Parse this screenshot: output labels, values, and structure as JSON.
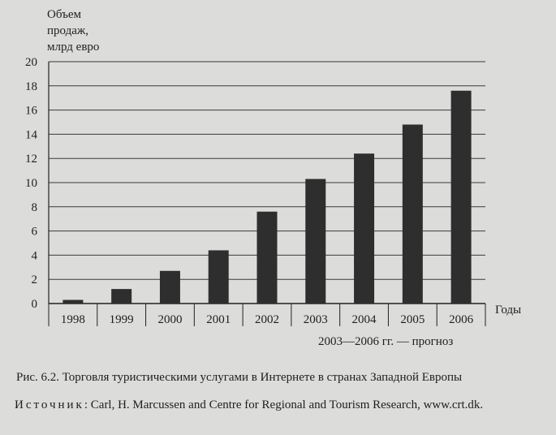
{
  "chart_data": {
    "type": "bar",
    "ylabel_lines": [
      "Объем",
      "продаж,",
      "млрд евро"
    ],
    "xlabel": "Годы",
    "categories": [
      "1998",
      "1999",
      "2000",
      "2001",
      "2002",
      "2003",
      "2004",
      "2005",
      "2006"
    ],
    "values": [
      0.3,
      1.2,
      2.7,
      4.4,
      7.6,
      10.3,
      12.4,
      14.8,
      17.6
    ],
    "ylim": [
      0,
      20
    ],
    "yticks": [
      0,
      2,
      4,
      6,
      8,
      10,
      12,
      14,
      16,
      18,
      20
    ],
    "grid": true,
    "bar_color": "#2e2e2e",
    "note": "2003—2006 гг. — прогноз"
  },
  "caption": "Рис. 6.2. Торговля туристическими услугами в Интернете в странах Западной Европы",
  "source": {
    "lead": "Источник",
    "text": ": Carl, H. Marcussen and Centre for Regional and Tourism Research, www.crt.dk."
  }
}
